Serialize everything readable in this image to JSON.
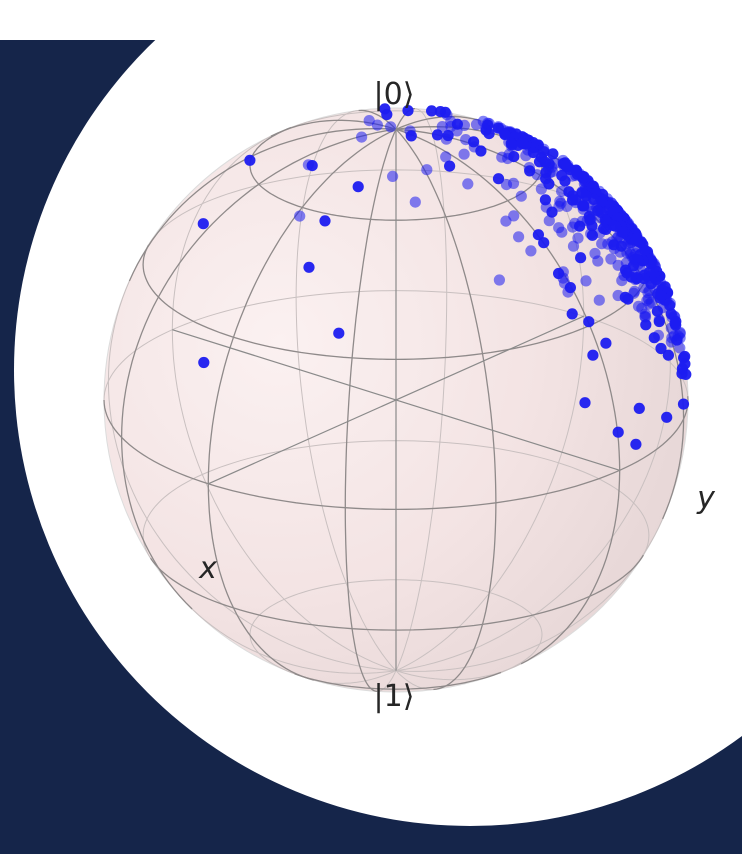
{
  "labels": {
    "north": "|0⟩",
    "south": "|1⟩",
    "x_axis": "x",
    "y_axis": "y"
  },
  "colors": {
    "backdrop": "#15254a",
    "panel": "#ffffff",
    "sphere_fill": "#f6e6e6",
    "wire": "#8a8a8a",
    "point": "#1c1cf0"
  },
  "sphere_points": {
    "seed": 7,
    "count": 460,
    "mean_direction": [
      0.35,
      0.7,
      0.55
    ],
    "concentration": 2.6
  }
}
